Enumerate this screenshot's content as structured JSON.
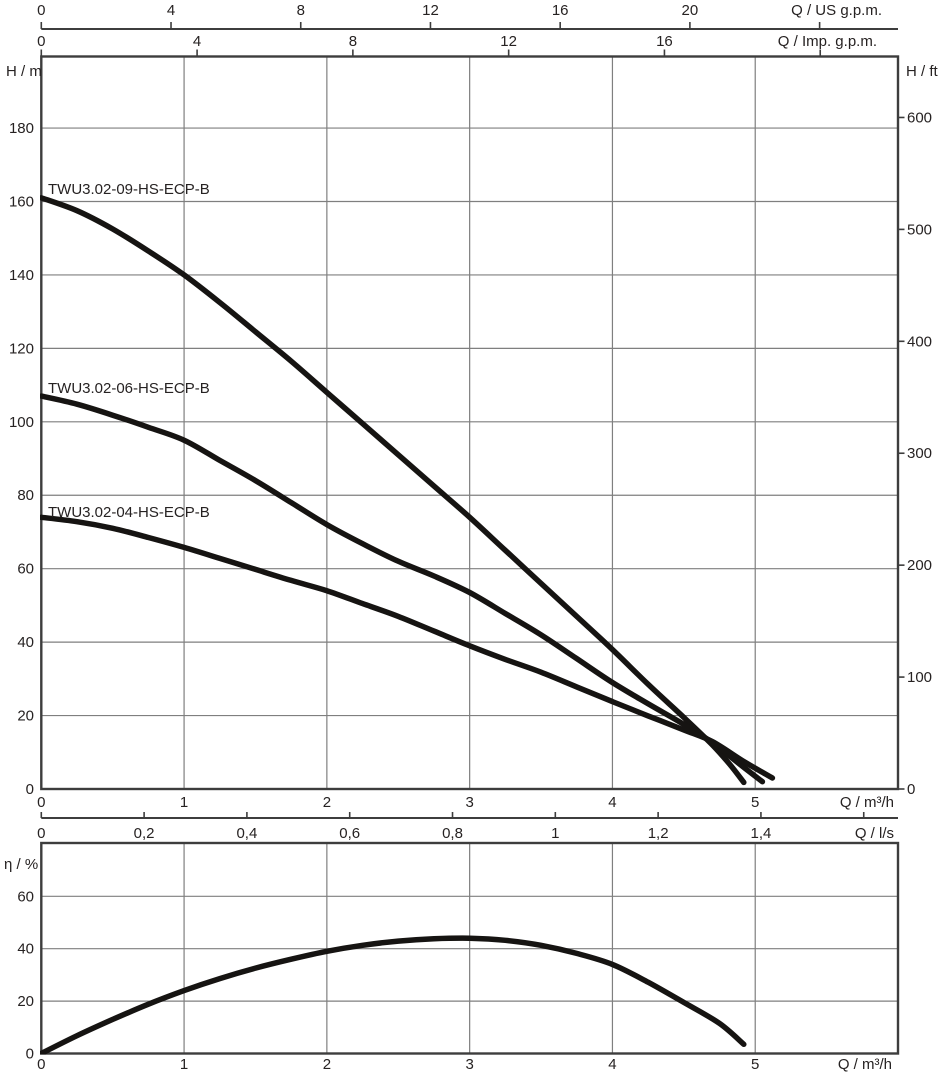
{
  "colors": {
    "curve": "#161412",
    "grid": "#7f7f7f",
    "frame": "#3d3d3d",
    "text": "#262222"
  },
  "chart_data": [
    {
      "type": "line",
      "x_range_m3h": [
        0,
        6
      ],
      "y_range_m": [
        0,
        199.5
      ],
      "grid": {
        "x_m3h": [
          1,
          2,
          3,
          4,
          5
        ],
        "y_m": [
          20,
          40,
          60,
          80,
          100,
          120,
          140,
          160,
          180
        ]
      },
      "axes": {
        "top_outer": {
          "label": "Q / US g.p.m.",
          "ticks": [
            0,
            4,
            8,
            12,
            16,
            20
          ],
          "unlabeled_ticks": [
            24
          ],
          "m3h_per_unit": 0.227125
        },
        "top_inner": {
          "label": "Q / Imp. g.p.m.",
          "ticks": [
            0,
            4,
            8,
            12,
            16
          ],
          "unlabeled_ticks": [
            20
          ],
          "m3h_per_unit": 0.272765
        },
        "bottom_inner": {
          "label": "Q / m³/h",
          "ticks": [
            0,
            1,
            2,
            3,
            4,
            5
          ],
          "m3h_per_unit": 1
        },
        "bottom_outer": {
          "label": "Q / l/s",
          "tick_values": [
            0,
            0.2,
            0.4,
            0.6,
            0.8,
            1,
            1.2,
            1.4
          ],
          "tick_labels": [
            "0",
            "0,2",
            "0,4",
            "0,6",
            "0,8",
            "1",
            "1,2",
            "1,4"
          ],
          "unlabeled_ticks": [
            1.6
          ],
          "m3h_per_unit": 3.6
        },
        "left": {
          "label": "H / m",
          "ticks": [
            0,
            20,
            40,
            60,
            80,
            100,
            120,
            140,
            160,
            180
          ],
          "m_per_unit": 1
        },
        "right": {
          "label": "H / ft",
          "ticks": [
            0,
            100,
            200,
            300,
            400,
            500,
            600
          ],
          "m_per_unit": 0.3048
        }
      },
      "series": [
        {
          "name": "TWU3.02-09-HS-ECP-B",
          "points": [
            [
              0,
              161
            ],
            [
              0.25,
              157.5
            ],
            [
              0.5,
              152.5
            ],
            [
              0.75,
              146.5
            ],
            [
              1,
              140
            ],
            [
              1.25,
              132.5
            ],
            [
              1.5,
              124.5
            ],
            [
              1.75,
              116.5
            ],
            [
              2,
              108
            ],
            [
              2.25,
              99.5
            ],
            [
              2.5,
              91
            ],
            [
              2.75,
              82.5
            ],
            [
              3,
              74
            ],
            [
              3.25,
              65
            ],
            [
              3.5,
              56
            ],
            [
              3.75,
              47
            ],
            [
              4,
              38
            ],
            [
              4.25,
              28.5
            ],
            [
              4.5,
              19.5
            ],
            [
              4.7,
              12
            ],
            [
              4.82,
              6.8
            ],
            [
              4.92,
              1.8
            ]
          ]
        },
        {
          "name": "TWU3.02-06-HS-ECP-B",
          "points": [
            [
              0,
              107
            ],
            [
              0.25,
              104.8
            ],
            [
              0.5,
              101.8
            ],
            [
              0.75,
              98.5
            ],
            [
              1,
              95
            ],
            [
              1.25,
              89.5
            ],
            [
              1.5,
              84
            ],
            [
              1.75,
              78
            ],
            [
              2,
              72
            ],
            [
              2.25,
              66.8
            ],
            [
              2.5,
              62
            ],
            [
              2.75,
              58
            ],
            [
              3,
              53.5
            ],
            [
              3.25,
              47.8
            ],
            [
              3.5,
              42
            ],
            [
              3.75,
              35.5
            ],
            [
              4,
              29
            ],
            [
              4.25,
              23.2
            ],
            [
              4.5,
              17.6
            ],
            [
              4.7,
              12.6
            ],
            [
              4.9,
              6.5
            ],
            [
              5.05,
              2
            ]
          ]
        },
        {
          "name": "TWU3.02-04-HS-ECP-B",
          "points": [
            [
              0,
              74
            ],
            [
              0.25,
              72.8
            ],
            [
              0.5,
              71
            ],
            [
              0.75,
              68.5
            ],
            [
              1,
              65.8
            ],
            [
              1.25,
              62.8
            ],
            [
              1.5,
              59.8
            ],
            [
              1.75,
              56.8
            ],
            [
              2,
              54
            ],
            [
              2.25,
              50.5
            ],
            [
              2.5,
              47
            ],
            [
              2.75,
              43
            ],
            [
              3,
              39
            ],
            [
              3.25,
              35.3
            ],
            [
              3.5,
              31.8
            ],
            [
              3.75,
              27.8
            ],
            [
              4,
              23.8
            ],
            [
              4.25,
              19.9
            ],
            [
              4.5,
              16.1
            ],
            [
              4.7,
              12.9
            ],
            [
              4.92,
              7.5
            ],
            [
              5.12,
              3
            ]
          ]
        }
      ]
    },
    {
      "type": "line",
      "x_range_m3h": [
        0,
        6
      ],
      "y_range_pct": [
        0,
        80
      ],
      "grid": {
        "x_m3h": [
          1,
          2,
          3,
          4,
          5
        ],
        "y_pct": [
          20,
          40,
          60
        ]
      },
      "axes": {
        "left": {
          "label": "η / %",
          "ticks": [
            0,
            20,
            40,
            60
          ]
        },
        "bottom": {
          "label": "Q / m³/h",
          "ticks": [
            0,
            1,
            2,
            3,
            4,
            5
          ]
        }
      },
      "series": [
        {
          "name": "efficiency",
          "points": [
            [
              0,
              0
            ],
            [
              0.25,
              6.8
            ],
            [
              0.5,
              13
            ],
            [
              0.75,
              18.8
            ],
            [
              1,
              24
            ],
            [
              1.25,
              28.6
            ],
            [
              1.5,
              32.6
            ],
            [
              1.75,
              36
            ],
            [
              2,
              39
            ],
            [
              2.25,
              41.3
            ],
            [
              2.5,
              42.9
            ],
            [
              2.75,
              43.8
            ],
            [
              3,
              44
            ],
            [
              3.25,
              43.2
            ],
            [
              3.5,
              41.3
            ],
            [
              3.75,
              38.2
            ],
            [
              4,
              34
            ],
            [
              4.25,
              27.2
            ],
            [
              4.5,
              19.5
            ],
            [
              4.75,
              11.5
            ],
            [
              4.92,
              3.5
            ]
          ]
        }
      ]
    }
  ]
}
